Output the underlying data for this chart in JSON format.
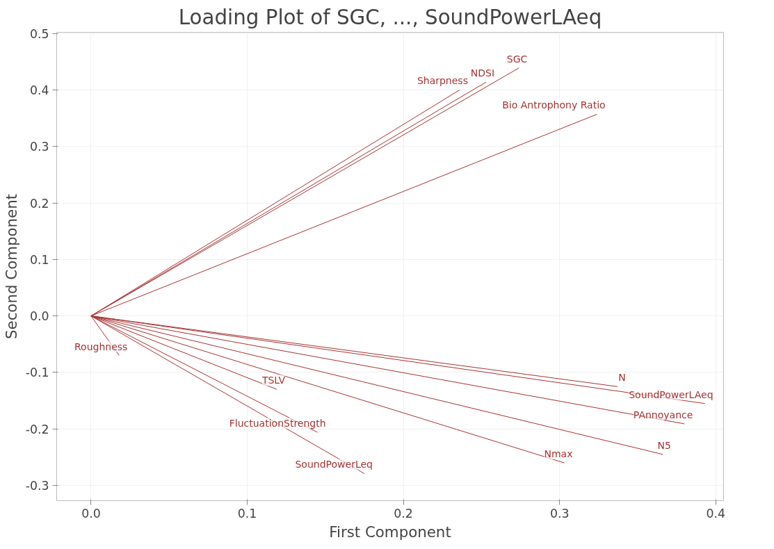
{
  "chart_data": {
    "type": "line",
    "title": "Loading Plot of SGC, ..., SoundPowerLAeq",
    "xlabel": "First Component",
    "ylabel": "Second Component",
    "xlim": [
      -0.022,
      0.405
    ],
    "ylim": [
      -0.327,
      0.502
    ],
    "xticks": [
      {
        "value": 0,
        "label": "0.0"
      },
      {
        "value": 0.1,
        "label": "0.1"
      },
      {
        "value": 0.2,
        "label": "0.2"
      },
      {
        "value": 0.3,
        "label": "0.3"
      },
      {
        "value": 0.4,
        "label": "0.4"
      }
    ],
    "yticks": [
      {
        "value": -0.3,
        "label": "-0.3"
      },
      {
        "value": -0.2,
        "label": "-0.2"
      },
      {
        "value": -0.1,
        "label": "-0.1"
      },
      {
        "value": 0,
        "label": "0.0"
      },
      {
        "value": 0.1,
        "label": "0.1"
      },
      {
        "value": 0.2,
        "label": "0.2"
      },
      {
        "value": 0.3,
        "label": "0.3"
      },
      {
        "value": 0.4,
        "label": "0.4"
      },
      {
        "value": 0.5,
        "label": "0.5"
      }
    ],
    "grid": true,
    "legend": false,
    "marker": "none",
    "line_style": "solid",
    "series": [
      {
        "name": "SGC",
        "color": "#a83232",
        "x": [
          0,
          0.274
        ],
        "values": [
          0,
          0.439
        ]
      },
      {
        "name": "NDSI",
        "color": "#a83232",
        "x": [
          0,
          0.253
        ],
        "values": [
          0,
          0.414
        ]
      },
      {
        "name": "Sharpness",
        "color": "#a83232",
        "x": [
          0,
          0.236
        ],
        "values": [
          0,
          0.4
        ]
      },
      {
        "name": "Bio Antrophony Ratio",
        "color": "#a83232",
        "x": [
          0,
          0.324
        ],
        "values": [
          0,
          0.357
        ]
      },
      {
        "name": "Roughness",
        "color": "#a83232",
        "x": [
          0,
          0.018
        ],
        "values": [
          0,
          -0.07
        ]
      },
      {
        "name": "TSLV",
        "color": "#a83232",
        "x": [
          0,
          0.119
        ],
        "values": [
          0,
          -0.13
        ]
      },
      {
        "name": "FluctuationStrength",
        "color": "#a83232",
        "x": [
          0,
          0.145
        ],
        "values": [
          0,
          -0.206
        ]
      },
      {
        "name": "SoundPowerLeq",
        "color": "#a83232",
        "x": [
          0,
          0.175
        ],
        "values": [
          0,
          -0.279
        ]
      },
      {
        "name": "N",
        "color": "#a83232",
        "x": [
          0,
          0.337
        ],
        "values": [
          0,
          -0.125
        ]
      },
      {
        "name": "SoundPowerLAeq",
        "color": "#a83232",
        "x": [
          0,
          0.393
        ],
        "values": [
          0,
          -0.155
        ]
      },
      {
        "name": "PAnnoyance",
        "color": "#a83232",
        "x": [
          0,
          0.38
        ],
        "values": [
          0,
          -0.191
        ]
      },
      {
        "name": "N5",
        "color": "#a83232",
        "x": [
          0,
          0.366
        ],
        "values": [
          0,
          -0.245
        ]
      },
      {
        "name": "Nmax",
        "color": "#a83232",
        "x": [
          0,
          0.303
        ],
        "values": [
          0,
          -0.26
        ]
      }
    ]
  }
}
